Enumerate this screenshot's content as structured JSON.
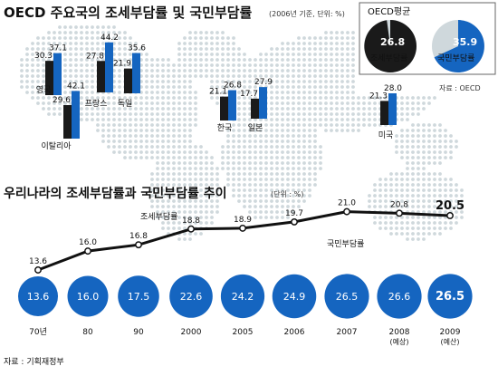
{
  "title": "OECD 주요국의 조세부담률 및 국민부담률",
  "title_note": "(2006년 기준, 단위: %)",
  "oecd_box": {
    "title": "OECD평균",
    "tax": {
      "value": "26.8",
      "label": "조세부담률"
    },
    "national": {
      "value": "35.9",
      "label": "국민부담률"
    }
  },
  "source_oecd": "자료 : OECD",
  "colors": {
    "tax": "#1a1a1a",
    "national": "#1565c0",
    "map": "#cfd8dc",
    "line": "#111111",
    "circle": "#1565c0"
  },
  "chart_data": [
    {
      "type": "bar",
      "title": "OECD 주요국의 조세부담률 및 국민부담률",
      "categories": [
        "영국",
        "이탈리아",
        "프랑스",
        "독일",
        "한국",
        "일본",
        "미국"
      ],
      "series": [
        {
          "name": "조세부담률",
          "values": [
            30.3,
            29.6,
            27.8,
            21.9,
            21.1,
            17.7,
            21.3
          ]
        },
        {
          "name": "국민부담률",
          "values": [
            37.1,
            42.1,
            44.2,
            35.6,
            26.8,
            27.9,
            28.0
          ]
        }
      ],
      "value_labels": {
        "tax": [
          "30.3",
          "29.6",
          "27.8",
          "21.9",
          "21.1",
          "17.7",
          "21.3"
        ],
        "national": [
          "37.1",
          "42.1",
          "44.2",
          "35.6",
          "26.8",
          "27.9",
          "28.0"
        ]
      },
      "unit": "%"
    },
    {
      "type": "line",
      "title": "우리나라의 조세부담률과 국민부담률 추이",
      "unit_note": "(단위 : %)",
      "categories": [
        "70년",
        "80",
        "90",
        "2000",
        "2005",
        "2006",
        "2007",
        "2008",
        "2009"
      ],
      "sublabels": [
        "",
        "",
        "",
        "",
        "",
        "",
        "",
        "(예상)",
        "(예산)"
      ],
      "series": [
        {
          "name": "조세부담률",
          "values": [
            13.6,
            16.0,
            16.8,
            18.8,
            18.9,
            19.7,
            21.0,
            20.8,
            20.5
          ],
          "labels": [
            "13.6",
            "16.0",
            "16.8",
            "18.8",
            "18.9",
            "19.7",
            "21.0",
            "20.8",
            "20.5"
          ]
        },
        {
          "name": "국민부담률",
          "values": [
            13.6,
            16.0,
            17.5,
            22.6,
            24.2,
            24.9,
            26.5,
            26.6,
            26.5
          ],
          "labels": [
            "13.6",
            "16.0",
            "17.5",
            "22.6",
            "24.2",
            "24.9",
            "26.5",
            "26.6",
            "26.5"
          ]
        }
      ],
      "annotations": {
        "tax_label": "조세부담률",
        "national_label": "국민부담률"
      }
    }
  ],
  "source_ministry": "자료 : 기획재정부"
}
